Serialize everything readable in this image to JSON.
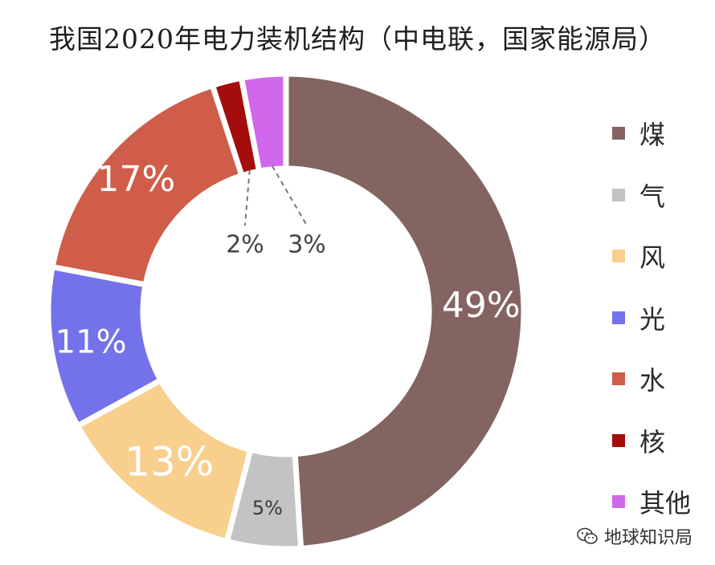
{
  "chart_data": {
    "type": "pie",
    "title": "我国2020年电力装机结构（中电联，国家能源局）",
    "categories": [
      "煤",
      "气",
      "风",
      "光",
      "水",
      "核",
      "其他"
    ],
    "values": [
      49,
      5,
      13,
      11,
      17,
      2,
      3
    ],
    "data_labels": [
      "49%",
      "5%",
      "13%",
      "11%",
      "17%",
      "2%",
      "3%"
    ],
    "colors": [
      "#836460",
      "#c3c3c3",
      "#f9cf8e",
      "#7472ea",
      "#cf5d4a",
      "#a50c0c",
      "#d167ea"
    ],
    "legend_position": "right"
  },
  "watermark": {
    "text": "地球知识局",
    "icon": "wechat-icon"
  }
}
